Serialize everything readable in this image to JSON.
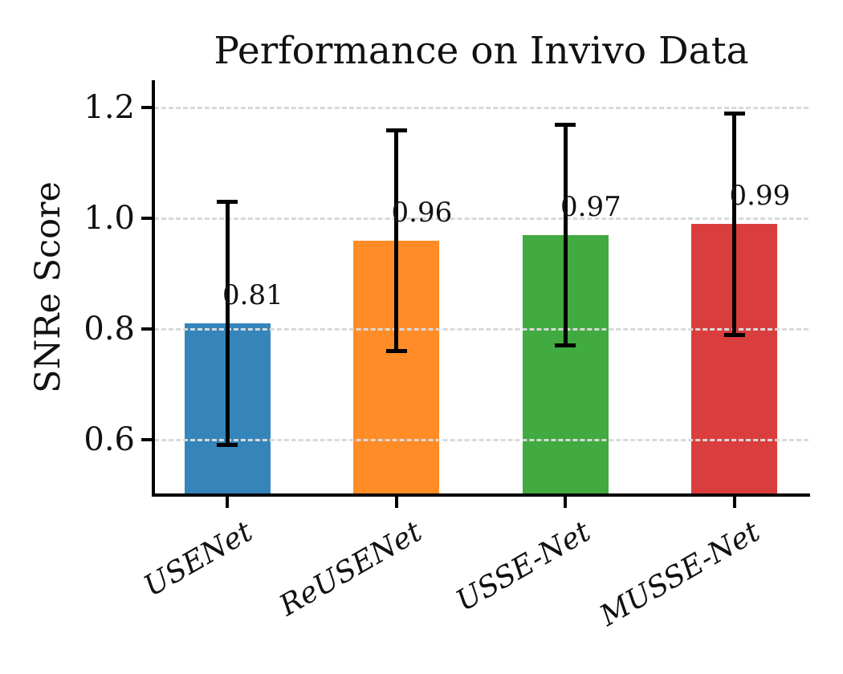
{
  "figure": {
    "background": "#ffffff",
    "text_color": "#111111",
    "axis_color": "#000000",
    "grid_color": "#d9d9d9"
  },
  "chart_data": {
    "type": "bar",
    "title": "Performance on Invivo Data",
    "xlabel": "",
    "ylabel": "SNRe Score",
    "categories": [
      "USENet",
      "ReUSENet",
      "USSE-Net",
      "MUSSE-Net"
    ],
    "values": [
      0.81,
      0.96,
      0.97,
      0.99
    ],
    "value_labels": [
      "0.81",
      "0.96",
      "0.97",
      "0.99"
    ],
    "error_plus": [
      0.22,
      0.2,
      0.2,
      0.2
    ],
    "error_minus": [
      0.22,
      0.2,
      0.2,
      0.2
    ],
    "bar_colors": [
      "#3585bb",
      "#ff8c26",
      "#41aa41",
      "#da3d3d"
    ],
    "errorbar_color": "#000000",
    "ytick_labels": [
      "0.6",
      "0.8",
      "1.0",
      "1.2"
    ],
    "ytick_values": [
      0.6,
      0.8,
      1.0,
      1.2
    ],
    "ylim": [
      0.5,
      1.25
    ],
    "grid": {
      "axis": "y",
      "style": "dashed",
      "on": true
    },
    "legend": null,
    "xtick_rotation_deg": 30
  }
}
